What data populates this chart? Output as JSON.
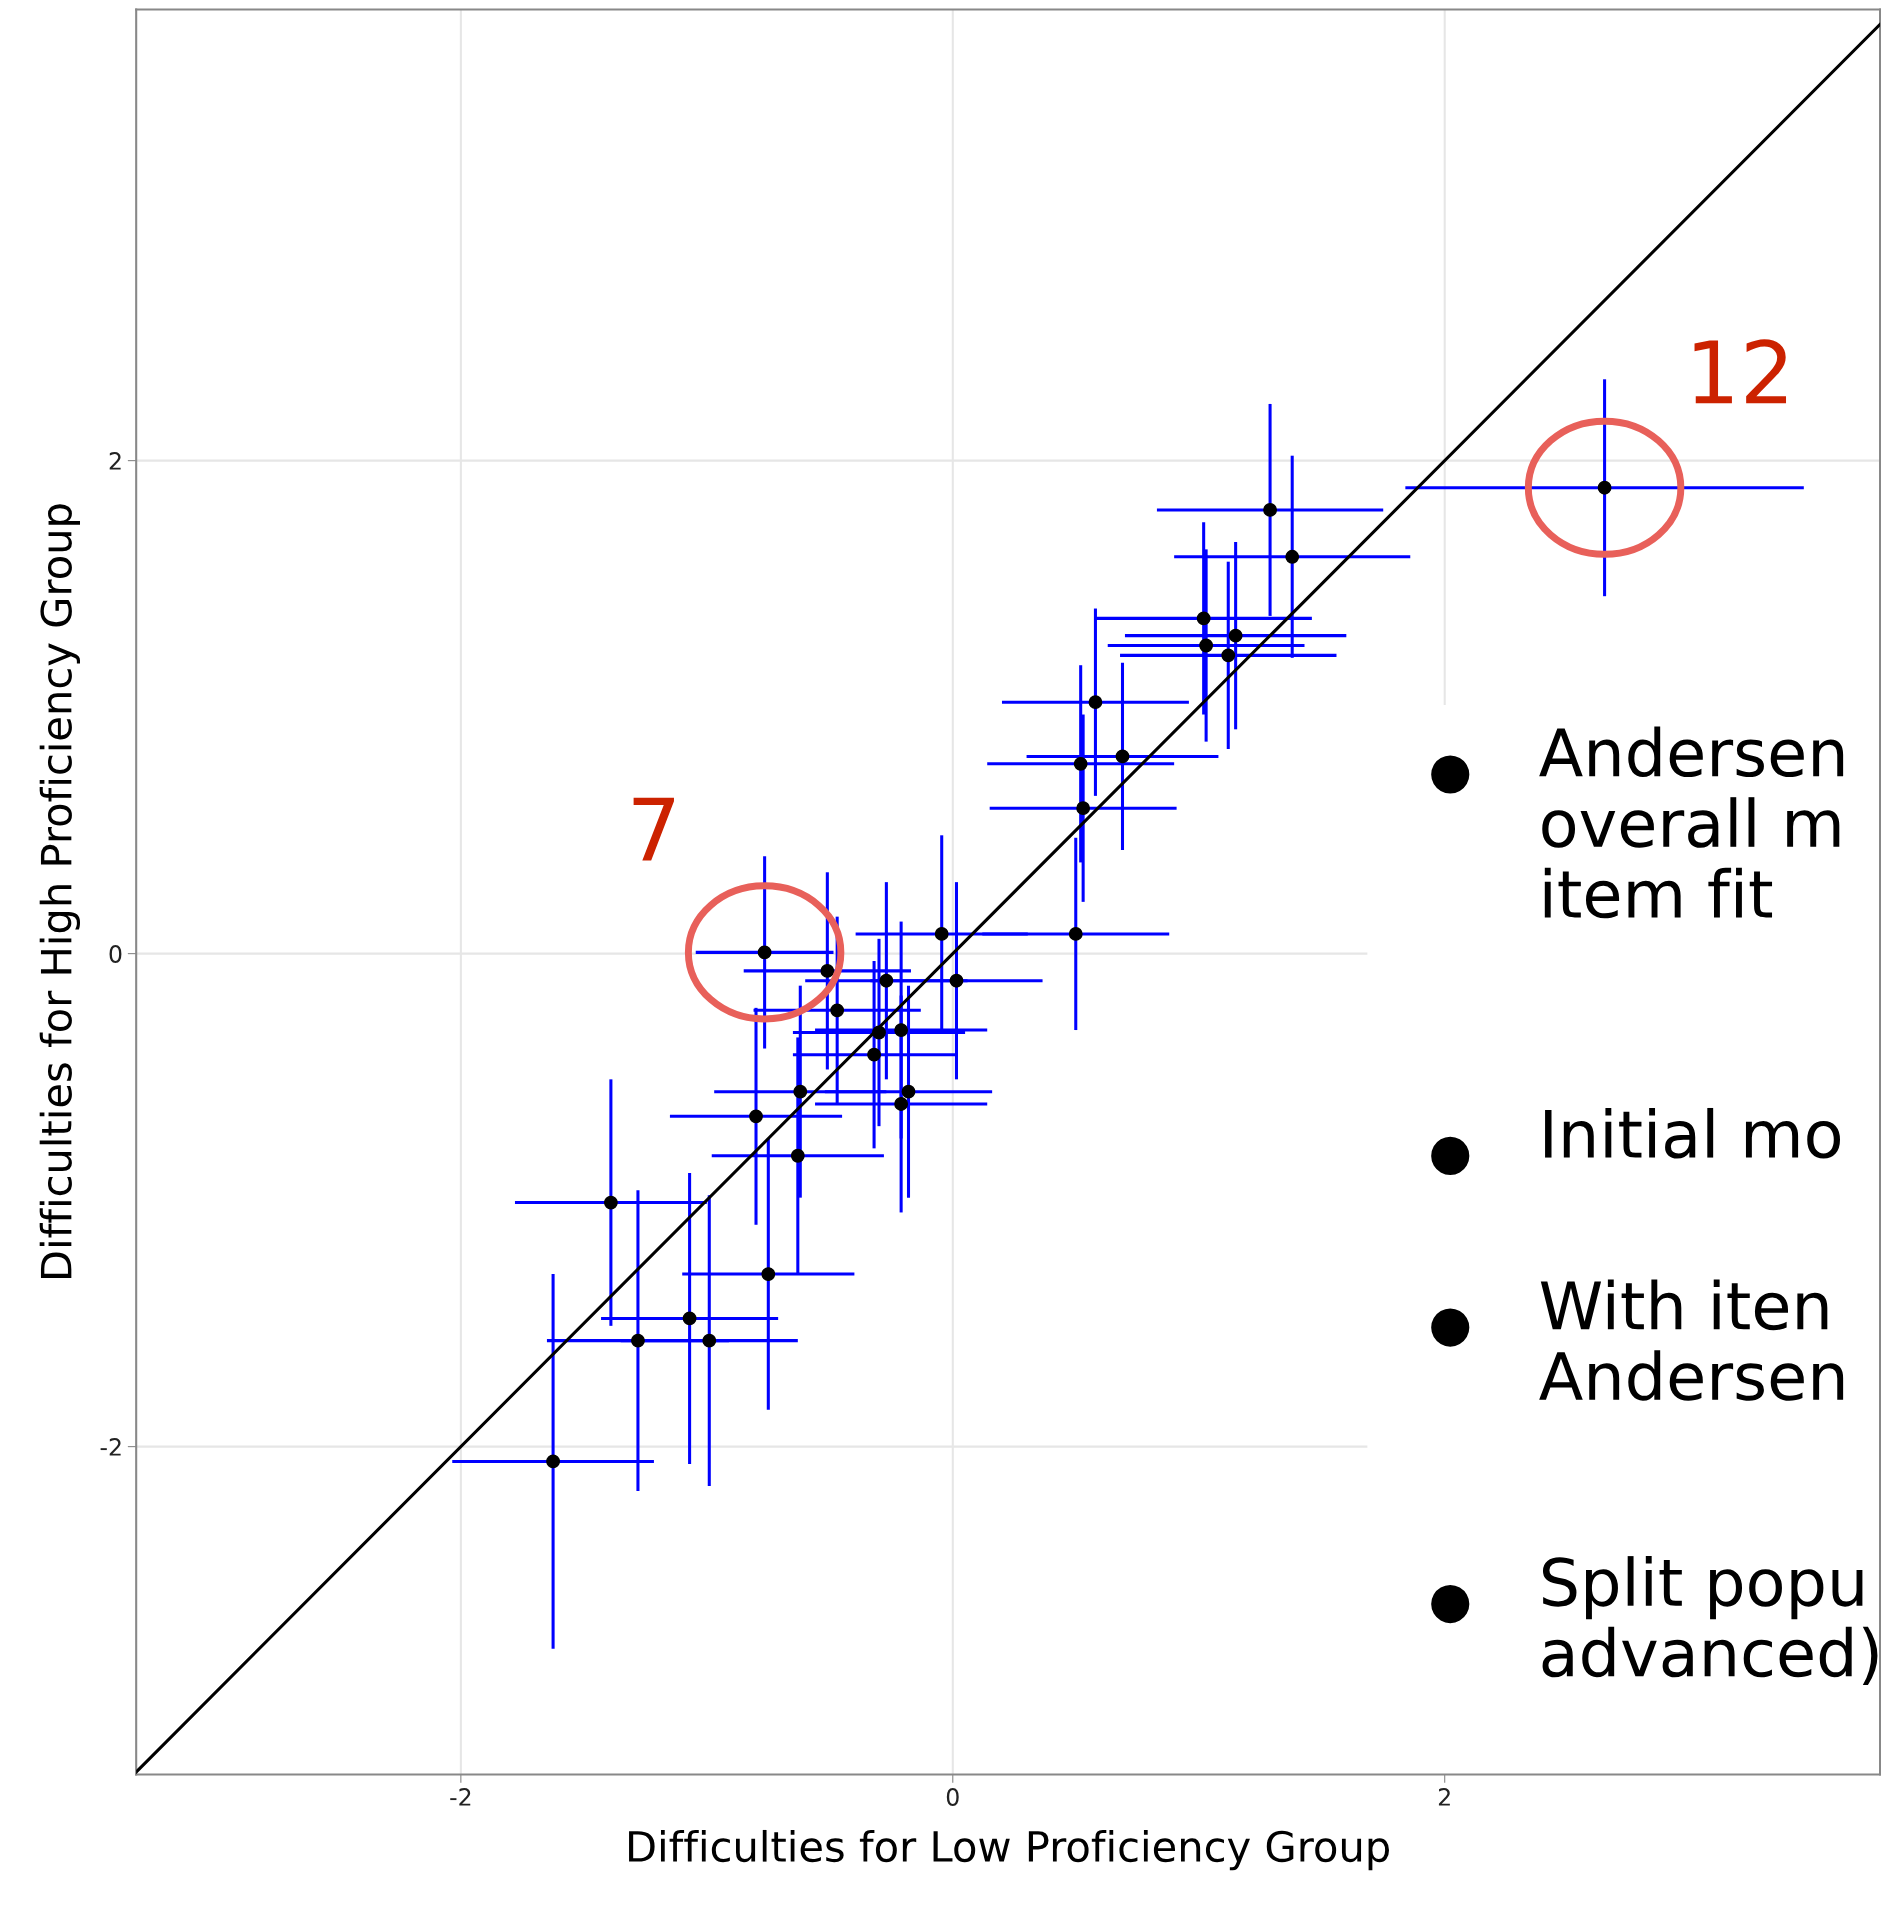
{
  "chart_data": {
    "type": "scatter",
    "xlabel": "Difficulties for Low Proficiency Group",
    "ylabel": "Difficulties for High Proficiency Group",
    "xlim": [
      -3.32,
      3.77
    ],
    "ylim": [
      -3.33,
      3.83
    ],
    "xticks": [
      -2,
      0,
      2
    ],
    "yticks": [
      -2,
      0,
      2
    ],
    "grid": true,
    "series": [
      {
        "type": "line",
        "x": [
          -3.32,
          3.77
        ],
        "values": [
          -3.32,
          3.77
        ],
        "color": "#000000"
      },
      {
        "color": "#000000",
        "marker": "circle",
        "x": [
          -1.625,
          -1.39,
          -1.28,
          -1.07,
          -0.99,
          -0.75,
          -0.765,
          -0.8,
          -0.63,
          -0.62,
          -0.51,
          -0.47,
          -0.32,
          -0.3,
          -0.27,
          -0.21,
          -0.21,
          -0.18,
          -0.045,
          0.015,
          0.5,
          0.53,
          0.52,
          0.69,
          0.58,
          1.02,
          1.03,
          1.12,
          1.15,
          1.29,
          1.38,
          2.65
        ],
        "values": [
          -2.06,
          -1.01,
          -1.57,
          -1.48,
          -1.57,
          -1.3,
          0.005,
          -0.66,
          -0.82,
          -0.56,
          -0.07,
          -0.23,
          -0.41,
          -0.32,
          -0.11,
          -0.31,
          -0.61,
          -0.56,
          0.08,
          -0.11,
          0.08,
          0.59,
          0.77,
          0.8,
          1.02,
          1.36,
          1.25,
          1.21,
          1.29,
          1.8,
          1.61,
          1.89
        ],
        "xerrors": [
          0.41,
          0.39,
          0.37,
          0.36,
          0.36,
          0.35,
          0.28,
          0.35,
          0.35,
          0.35,
          0.34,
          0.34,
          0.33,
          0.35,
          0.33,
          0.35,
          0.35,
          0.34,
          0.35,
          0.35,
          0.38,
          0.38,
          0.38,
          0.39,
          0.38,
          0.44,
          0.4,
          0.44,
          0.45,
          0.46,
          0.48,
          0.81
        ],
        "errors": [
          0.76,
          0.5,
          0.61,
          0.59,
          0.59,
          0.55,
          0.39,
          0.44,
          0.48,
          0.43,
          0.4,
          0.38,
          0.38,
          0.38,
          0.4,
          0.44,
          0.44,
          0.43,
          0.4,
          0.4,
          0.39,
          0.38,
          0.4,
          0.38,
          0.38,
          0.39,
          0.39,
          0.38,
          0.38,
          0.43,
          0.41,
          0.44
        ]
      }
    ],
    "annotations": [
      {
        "text": "7",
        "x": -0.765,
        "y": 0.005
      },
      {
        "text": "12",
        "x": 2.65,
        "y": 1.89
      },
      "●Andersen\noverall m\nitem fit",
      "●Initial mo",
      "●With iten\nAndersen",
      "●Split popu\nadvanced)"
    ]
  }
}
